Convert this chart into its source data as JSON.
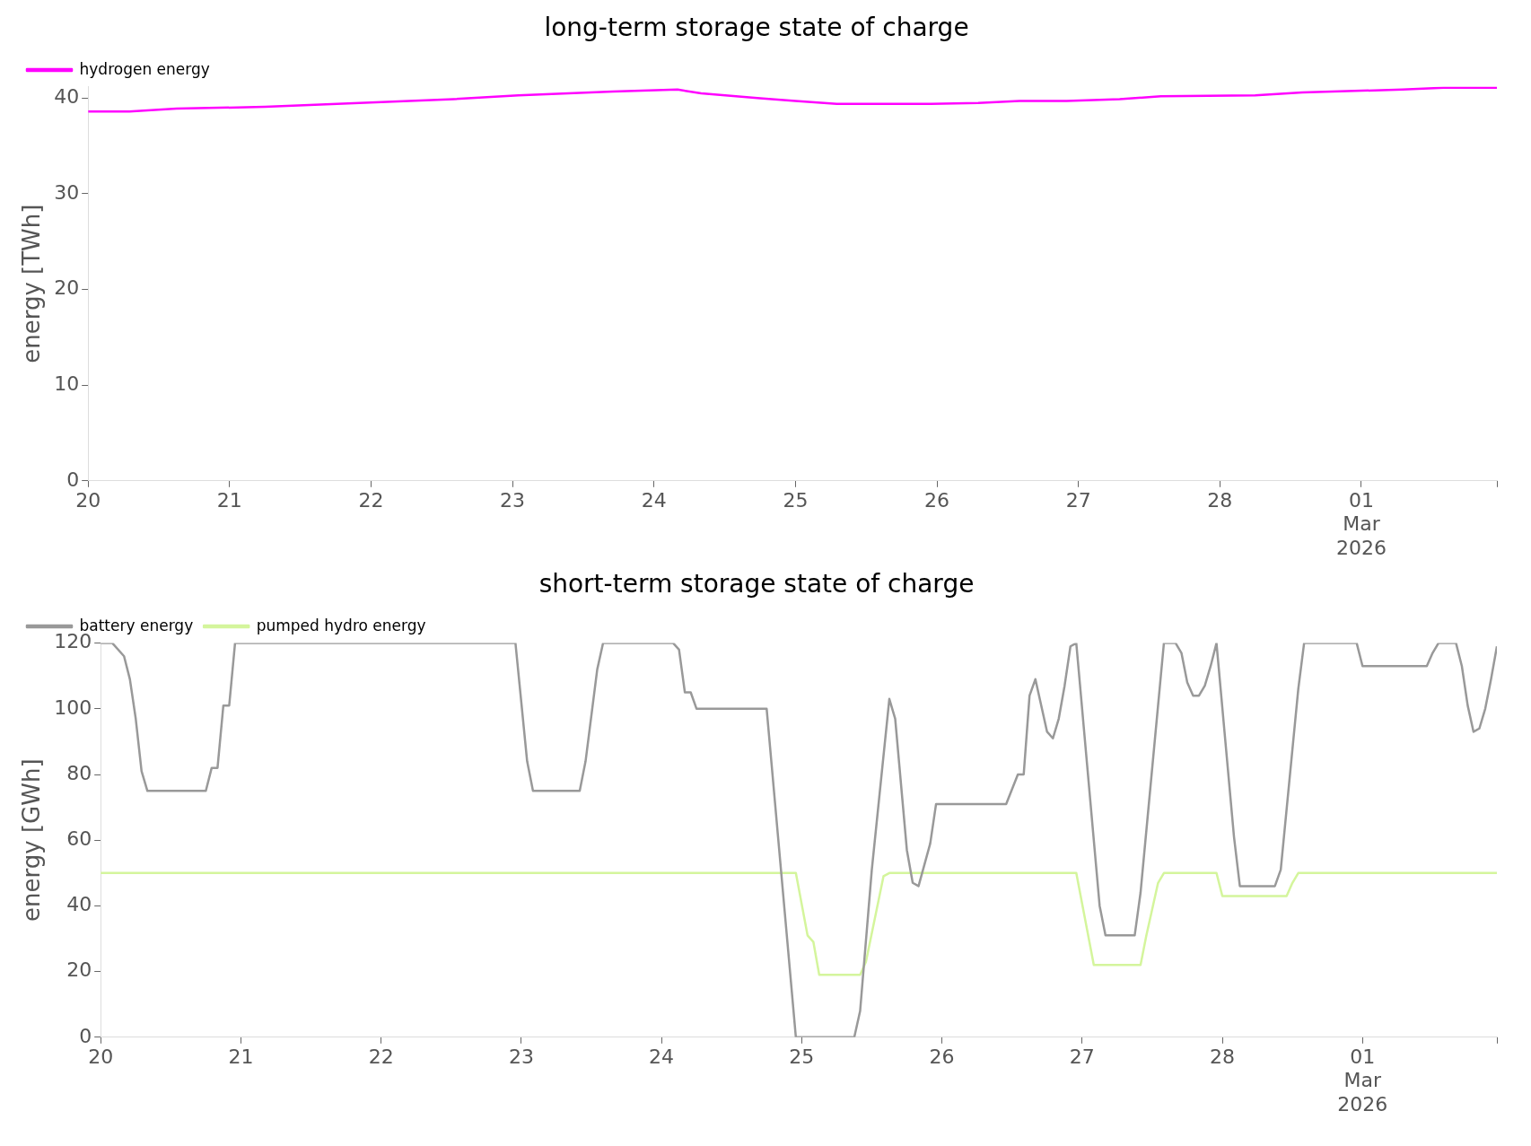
{
  "chart_data": [
    {
      "type": "line",
      "title": "long-term storage state of charge",
      "ylabel": "energy [TWh]",
      "legend": "top left",
      "xlim": [
        "2026-02-20T00:00",
        "2026-03-01T23:00"
      ],
      "xticks": [
        {
          "value": "2026-02-20",
          "label": "20"
        },
        {
          "value": "2026-02-21",
          "label": "21"
        },
        {
          "value": "2026-02-22",
          "label": "22"
        },
        {
          "value": "2026-02-23",
          "label": "23"
        },
        {
          "value": "2026-02-24",
          "label": "24"
        },
        {
          "value": "2026-02-25",
          "label": "25"
        },
        {
          "value": "2026-02-26",
          "label": "26"
        },
        {
          "value": "2026-02-27",
          "label": "27"
        },
        {
          "value": "2026-02-28",
          "label": "28"
        },
        {
          "value": "2026-03-01",
          "label": "01\nMar\n2026"
        },
        {
          "value": "2026-03-01T23:00",
          "label": null
        }
      ],
      "ylim": [
        0,
        41.2
      ],
      "yticks": [
        0,
        10,
        20,
        30,
        40
      ],
      "series": [
        {
          "name": "hydrogen energy",
          "color": "#ff00ff",
          "x": [
            "2026-02-20T00:00",
            "2026-02-20T07:00",
            "2026-02-20T15:00",
            "2026-02-21T06:00",
            "2026-02-21T22:00",
            "2026-02-22T14:00",
            "2026-02-23T01:00",
            "2026-02-23T17:00",
            "2026-02-24T04:00",
            "2026-02-24T08:00",
            "2026-02-24T18:00",
            "2026-02-25T00:00",
            "2026-02-25T07:00",
            "2026-02-25T23:00",
            "2026-02-26T07:00",
            "2026-02-26T14:00",
            "2026-02-26T22:00",
            "2026-02-27T07:00",
            "2026-02-27T14:00",
            "2026-02-28T06:00",
            "2026-02-28T14:00",
            "2026-03-01T07:00",
            "2026-03-01T14:00",
            "2026-03-01T23:00"
          ],
          "values": [
            38.6,
            38.6,
            38.9,
            39.1,
            39.5,
            39.9,
            40.3,
            40.7,
            40.9,
            40.5,
            40.0,
            39.7,
            39.4,
            39.4,
            39.5,
            39.7,
            39.7,
            39.9,
            40.2,
            40.3,
            40.6,
            40.9,
            41.1,
            41.1
          ]
        }
      ]
    },
    {
      "type": "line",
      "title": "short-term storage state of charge",
      "ylabel": "energy [GWh]",
      "legend": "top left",
      "xlim": [
        "2026-02-20T00:00",
        "2026-03-01T23:00"
      ],
      "xticks": [
        {
          "value": "2026-02-20",
          "label": "20"
        },
        {
          "value": "2026-02-21",
          "label": "21"
        },
        {
          "value": "2026-02-22",
          "label": "22"
        },
        {
          "value": "2026-02-23",
          "label": "23"
        },
        {
          "value": "2026-02-24",
          "label": "24"
        },
        {
          "value": "2026-02-25",
          "label": "25"
        },
        {
          "value": "2026-02-26",
          "label": "26"
        },
        {
          "value": "2026-02-27",
          "label": "27"
        },
        {
          "value": "2026-02-28",
          "label": "28"
        },
        {
          "value": "2026-03-01",
          "label": "01\nMar\n2026"
        },
        {
          "value": "2026-03-01T23:00",
          "label": null
        }
      ],
      "ylim": [
        0,
        120
      ],
      "yticks": [
        0,
        20,
        40,
        60,
        80,
        100,
        120
      ],
      "series": [
        {
          "name": "battery energy",
          "color": "#999999",
          "x": [
            "2026-02-20T00:00",
            "2026-02-20T02:00",
            "2026-02-20T04:00",
            "2026-02-20T05:00",
            "2026-02-20T06:00",
            "2026-02-20T07:00",
            "2026-02-20T08:00",
            "2026-02-20T18:00",
            "2026-02-20T19:00",
            "2026-02-20T20:00",
            "2026-02-20T21:00",
            "2026-02-20T22:00",
            "2026-02-20T23:00",
            "2026-02-22T23:00",
            "2026-02-23T01:00",
            "2026-02-23T02:00",
            "2026-02-23T10:00",
            "2026-02-23T11:00",
            "2026-02-23T13:00",
            "2026-02-23T14:00",
            "2026-02-24T02:00",
            "2026-02-24T03:00",
            "2026-02-24T04:00",
            "2026-02-24T05:00",
            "2026-02-24T06:00",
            "2026-02-24T18:00",
            "2026-02-24T23:00",
            "2026-02-25T09:00",
            "2026-02-25T10:00",
            "2026-02-25T12:00",
            "2026-02-25T15:00",
            "2026-02-25T16:00",
            "2026-02-25T18:00",
            "2026-02-25T19:00",
            "2026-02-25T20:00",
            "2026-02-25T22:00",
            "2026-02-25T23:00",
            "2026-02-26T11:00",
            "2026-02-26T13:00",
            "2026-02-26T14:00",
            "2026-02-26T15:00",
            "2026-02-26T16:00",
            "2026-02-26T18:00",
            "2026-02-26T19:00",
            "2026-02-26T20:00",
            "2026-02-26T21:00",
            "2026-02-26T22:00",
            "2026-02-26T23:00",
            "2026-02-27T03:00",
            "2026-02-27T04:00",
            "2026-02-27T09:00",
            "2026-02-27T10:00",
            "2026-02-27T14:00",
            "2026-02-27T16:00",
            "2026-02-27T17:00",
            "2026-02-27T18:00",
            "2026-02-27T19:00",
            "2026-02-27T20:00",
            "2026-02-27T21:00",
            "2026-02-27T22:00",
            "2026-02-27T23:00",
            "2026-02-28T02:00",
            "2026-02-28T03:00",
            "2026-02-28T09:00",
            "2026-02-28T10:00",
            "2026-02-28T13:00",
            "2026-02-28T14:00",
            "2026-02-28T23:00",
            "2026-03-01T00:00",
            "2026-03-01T11:00",
            "2026-03-01T12:00",
            "2026-03-01T13:00",
            "2026-03-01T16:00",
            "2026-03-01T17:00",
            "2026-03-01T18:00",
            "2026-03-01T19:00",
            "2026-03-01T20:00",
            "2026-03-01T21:00",
            "2026-03-01T22:00",
            "2026-03-01T23:00"
          ],
          "values": [
            120,
            120,
            116,
            109,
            97,
            81,
            75,
            75,
            82,
            82,
            101,
            101,
            120,
            120,
            84,
            75,
            75,
            84,
            112,
            120,
            120,
            118,
            105,
            105,
            100,
            100,
            0,
            0,
            8,
            51,
            103,
            97,
            57,
            47,
            46,
            59,
            71,
            71,
            80,
            80,
            104,
            109,
            93,
            91,
            97,
            107,
            119,
            120,
            40,
            31,
            31,
            44,
            120,
            120,
            117,
            108,
            104,
            104,
            107,
            113,
            120,
            61,
            46,
            46,
            51,
            106,
            120,
            120,
            113,
            113,
            117,
            120,
            120,
            113,
            101,
            93,
            94,
            100,
            109,
            119
          ]
        },
        {
          "name": "pumped hydro energy",
          "color": "#d4f59c",
          "x": [
            "2026-02-20T00:00",
            "2026-02-24T23:00",
            "2026-02-25T01:00",
            "2026-02-25T02:00",
            "2026-02-25T03:00",
            "2026-02-25T10:00",
            "2026-02-25T11:00",
            "2026-02-25T14:00",
            "2026-02-25T15:00",
            "2026-02-26T23:00",
            "2026-02-27T02:00",
            "2026-02-27T10:00",
            "2026-02-27T11:00",
            "2026-02-27T13:00",
            "2026-02-27T14:00",
            "2026-02-27T23:00",
            "2026-02-28T00:00",
            "2026-02-28T11:00",
            "2026-02-28T12:00",
            "2026-02-28T13:00",
            "2026-03-01T23:00"
          ],
          "values": [
            50,
            50,
            31,
            29,
            19,
            19,
            23,
            49,
            50,
            50,
            22,
            22,
            31,
            47,
            50,
            50,
            43,
            43,
            47,
            50,
            50
          ]
        }
      ]
    }
  ]
}
